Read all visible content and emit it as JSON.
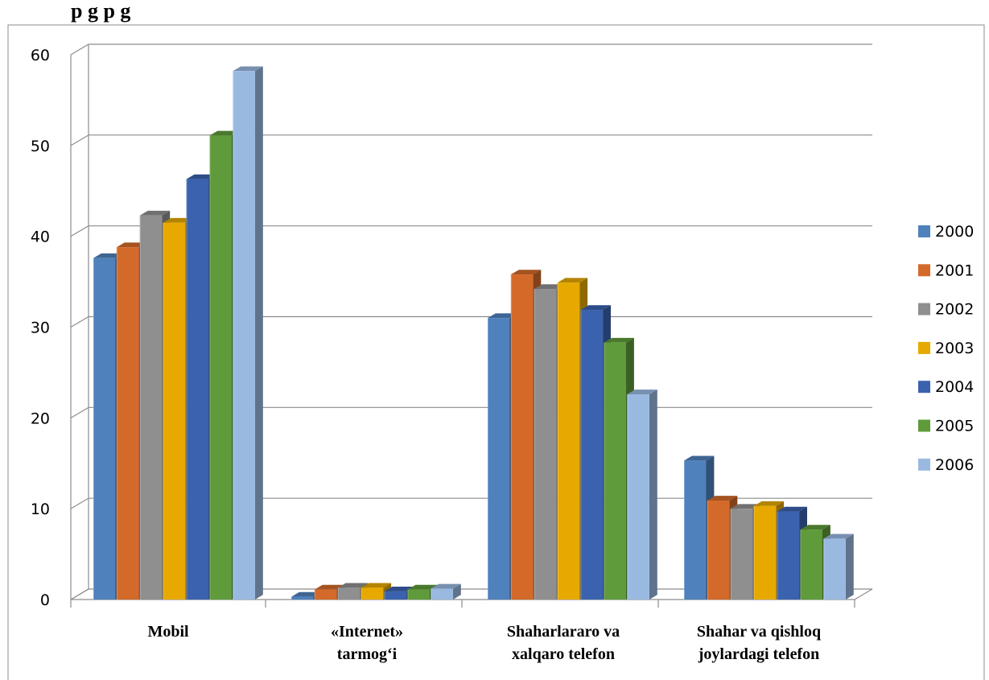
{
  "header_text": "p                            g p                          g",
  "chart_data": {
    "type": "bar",
    "style": "3d-clustered-column",
    "title": "",
    "xlabel": "",
    "ylabel": "",
    "ylim": [
      0,
      60
    ],
    "yticks": [
      0,
      10,
      20,
      30,
      40,
      50,
      60
    ],
    "grid": true,
    "legend_position": "right",
    "categories": [
      [
        "Mobil"
      ],
      [
        "«Internet»",
        "tarmog‘i"
      ],
      [
        "Shaharlararo va",
        "xalqaro telefon"
      ],
      [
        "Shahar va qishloq",
        "joylardagi telefon"
      ]
    ],
    "series": [
      {
        "name": "2000",
        "color": "#4f81bd",
        "values": [
          37.6,
          0.3,
          31.0,
          15.3
        ]
      },
      {
        "name": "2001",
        "color": "#d46a2a",
        "values": [
          38.8,
          1.1,
          35.8,
          10.9
        ]
      },
      {
        "name": "2002",
        "color": "#8f8f8f",
        "values": [
          42.3,
          1.3,
          34.2,
          10.0
        ]
      },
      {
        "name": "2003",
        "color": "#e7a900",
        "values": [
          41.5,
          1.3,
          34.9,
          10.3
        ]
      },
      {
        "name": "2004",
        "color": "#3a62ae",
        "values": [
          46.3,
          0.9,
          31.9,
          9.7
        ]
      },
      {
        "name": "2005",
        "color": "#5f9b3a",
        "values": [
          51.1,
          1.1,
          28.3,
          7.7
        ]
      },
      {
        "name": "2006",
        "color": "#9ab9e1",
        "values": [
          58.2,
          1.2,
          22.6,
          6.7
        ]
      }
    ]
  }
}
